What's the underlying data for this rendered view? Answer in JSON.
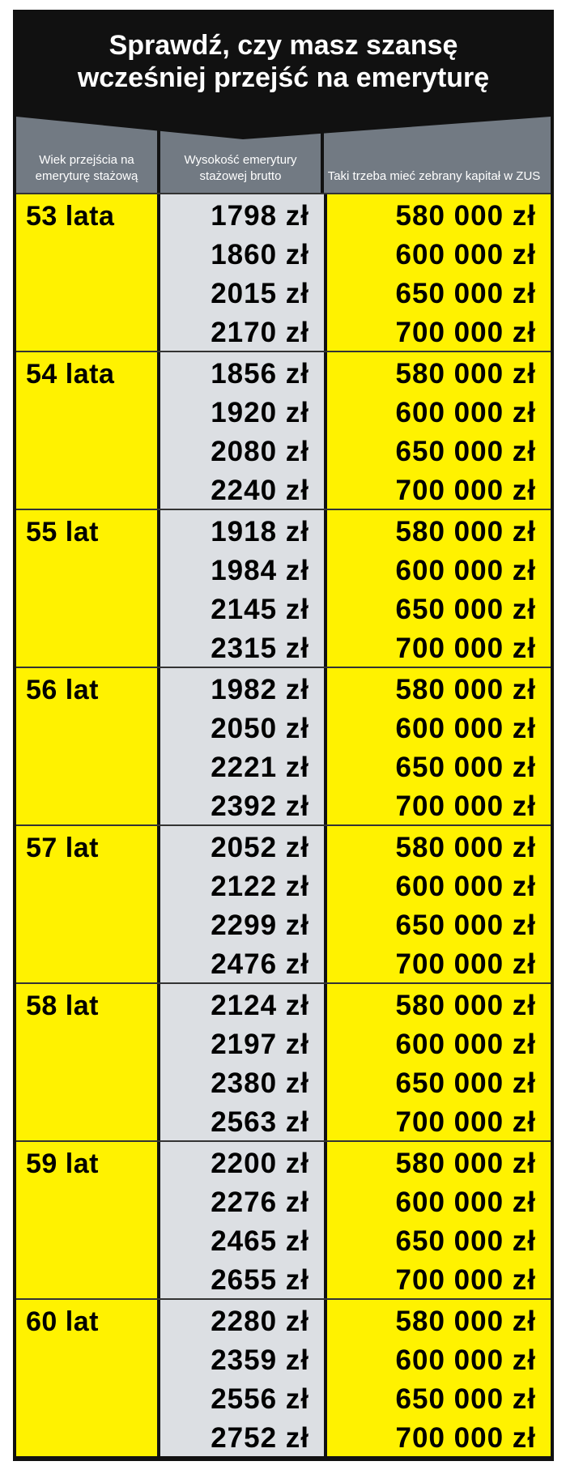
{
  "title": [
    "Sprawdź, czy masz szansę",
    "wcześniej przejść na emeryturę"
  ],
  "headers": [
    "Wiek przejścia na emeryturę stażową",
    "Wysokość emerytury stażowej brutto",
    "Taki trzeba mieć zebrany kapitał w ZUS"
  ],
  "groups": [
    {
      "age": "53 lata",
      "rows": [
        [
          "1798 zł",
          "580 000 zł"
        ],
        [
          "1860 zł",
          "600 000 zł"
        ],
        [
          "2015 zł",
          "650 000 zł"
        ],
        [
          "2170 zł",
          "700 000 zł"
        ]
      ]
    },
    {
      "age": "54 lata",
      "rows": [
        [
          "1856 zł",
          "580 000 zł"
        ],
        [
          "1920 zł",
          "600 000 zł"
        ],
        [
          "2080 zł",
          "650 000 zł"
        ],
        [
          "2240 zł",
          "700 000 zł"
        ]
      ]
    },
    {
      "age": "55 lat",
      "rows": [
        [
          "1918 zł",
          "580 000 zł"
        ],
        [
          "1984 zł",
          "600 000 zł"
        ],
        [
          "2145 zł",
          "650 000 zł"
        ],
        [
          "2315 zł",
          "700 000 zł"
        ]
      ]
    },
    {
      "age": "56 lat",
      "rows": [
        [
          "1982 zł",
          "580 000 zł"
        ],
        [
          "2050 zł",
          "600 000 zł"
        ],
        [
          "2221 zł",
          "650 000 zł"
        ],
        [
          "2392 zł",
          "700 000 zł"
        ]
      ]
    },
    {
      "age": "57 lat",
      "rows": [
        [
          "2052 zł",
          "580 000 zł"
        ],
        [
          "2122 zł",
          "600 000 zł"
        ],
        [
          "2299 zł",
          "650 000 zł"
        ],
        [
          "2476 zł",
          "700 000 zł"
        ]
      ]
    },
    {
      "age": "58 lat",
      "rows": [
        [
          "2124 zł",
          "580 000 zł"
        ],
        [
          "2197 zł",
          "600 000 zł"
        ],
        [
          "2380 zł",
          "650 000 zł"
        ],
        [
          "2563 zł",
          "700 000 zł"
        ]
      ]
    },
    {
      "age": "59 lat",
      "rows": [
        [
          "2200 zł",
          "580 000 zł"
        ],
        [
          "2276 zł",
          "600 000 zł"
        ],
        [
          "2465 zł",
          "650 000 zł"
        ],
        [
          "2655 zł",
          "700 000 zł"
        ]
      ]
    },
    {
      "age": "60 lat",
      "rows": [
        [
          "2280 zł",
          "580 000 zł"
        ],
        [
          "2359 zł",
          "600 000 zł"
        ],
        [
          "2556 zł",
          "650 000 zł"
        ],
        [
          "2752 zł",
          "700 000 zł"
        ]
      ]
    }
  ]
}
